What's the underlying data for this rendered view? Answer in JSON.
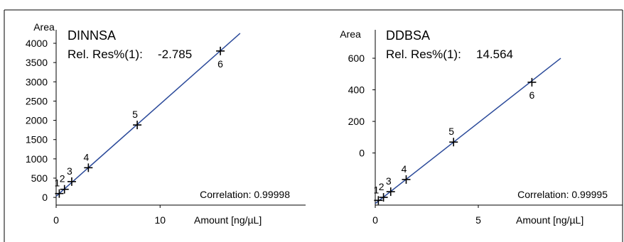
{
  "chart_data": [
    {
      "type": "scatter",
      "title": "DINNSA",
      "subtitle_label": "Rel. Res%(1):",
      "subtitle_value": "-2.785",
      "ylabel": "Area",
      "xlabel": "Amount [ng/µL]",
      "correlation_text": "Correlation: 0.99998",
      "x_ticks": [
        0,
        10
      ],
      "x_tick_labels": [
        "0",
        "10"
      ],
      "y_ticks": [
        0,
        500,
        1000,
        1500,
        2000,
        2500,
        3000,
        3500,
        4000
      ],
      "y_tick_labels": [
        "0",
        "500",
        "1000",
        "1500",
        "2000",
        "2500",
        "3000",
        "3500",
        "4000"
      ],
      "xlim": [
        0,
        24
      ],
      "ylim": [
        -200,
        4350
      ],
      "points": [
        {
          "label": "1",
          "x": 0.3,
          "y": 100
        },
        {
          "label": "2",
          "x": 0.8,
          "y": 210
        },
        {
          "label": "3",
          "x": 1.5,
          "y": 410
        },
        {
          "label": "4",
          "x": 3.1,
          "y": 770
        },
        {
          "label": "5",
          "x": 7.8,
          "y": 1880
        },
        {
          "label": "6",
          "x": 15.8,
          "y": 3800
        }
      ],
      "fit_line": {
        "x": [
          0,
          17.7
        ],
        "y": [
          30,
          4260
        ]
      }
    },
    {
      "type": "scatter",
      "title": "DDBSA",
      "subtitle_label": "Rel. Res%(1):",
      "subtitle_value": "14.564",
      "ylabel": "Area",
      "xlabel": "Amount [ng/µL]",
      "correlation_text": "Correlation: 0.99995",
      "x_ticks": [
        0,
        5
      ],
      "x_tick_labels": [
        "0",
        "5"
      ],
      "y_ticks": [
        0,
        200,
        400,
        600
      ],
      "y_tick_labels": [
        "0",
        "200",
        "400",
        "600"
      ],
      "xlim": [
        0,
        12
      ],
      "ylim": [
        -330,
        780
      ],
      "points": [
        {
          "label": "1",
          "x": 0.15,
          "y": -300
        },
        {
          "label": "2",
          "x": 0.4,
          "y": -281
        },
        {
          "label": "3",
          "x": 0.75,
          "y": -245
        },
        {
          "label": "4",
          "x": 1.5,
          "y": -168
        },
        {
          "label": "5",
          "x": 3.8,
          "y": 69
        },
        {
          "label": "6",
          "x": 7.6,
          "y": 448
        }
      ],
      "fit_line": {
        "x": [
          0,
          9.0
        ],
        "y": [
          -320,
          600
        ]
      }
    }
  ]
}
